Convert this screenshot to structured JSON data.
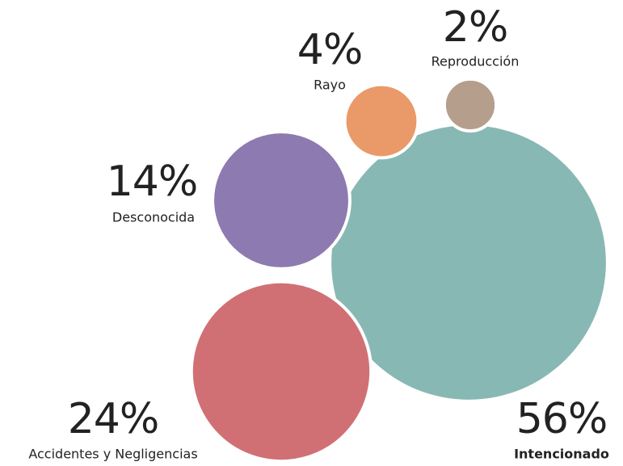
{
  "chart_data": {
    "type": "bubble",
    "categories": [
      "Intencionado",
      "Accidentes y Negligencias",
      "Desconocida",
      "Rayo",
      "Reproducción"
    ],
    "values": [
      56,
      24,
      14,
      4,
      2
    ],
    "value_labels": [
      "56%",
      "24%",
      "14%",
      "4%",
      "2%"
    ],
    "colors": [
      "#88b8b4",
      "#d07075",
      "#8c7ab0",
      "#e99a68",
      "#b59e8c"
    ]
  }
}
